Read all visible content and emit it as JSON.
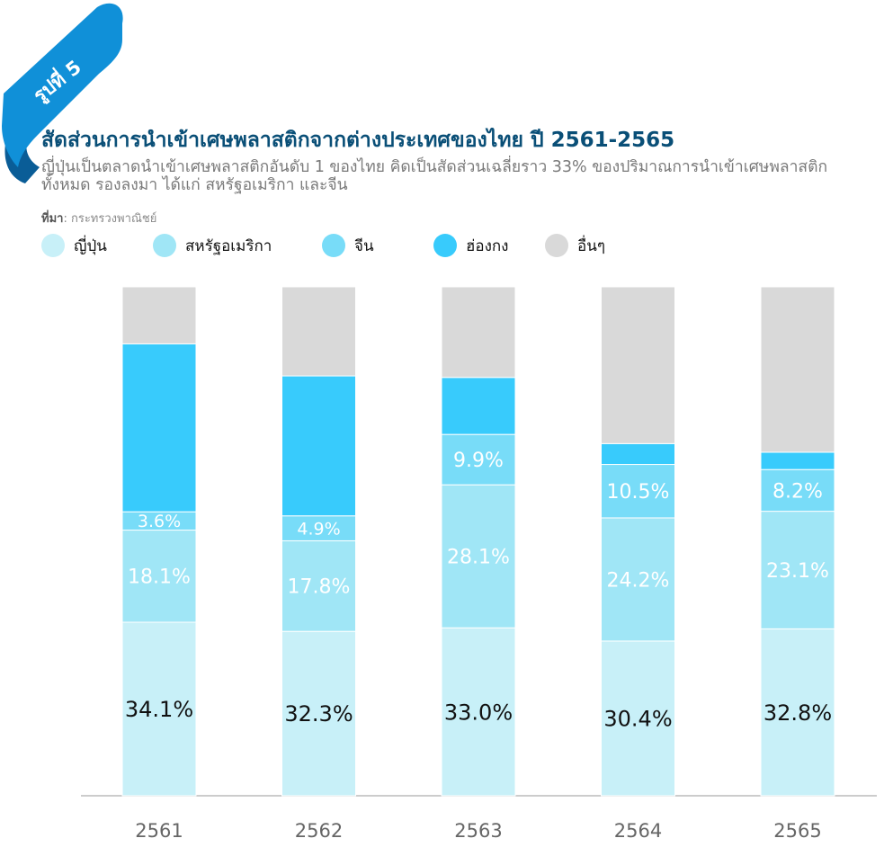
{
  "badge": {
    "text": "รูปที่ 5"
  },
  "header": {
    "title": "สัดส่วนการนำเข้าเศษพลาสติกจากต่างประเทศของไทย ปี 2561-2565",
    "subtitle": "ญี่ปุ่นเป็นตลาดนำเข้าเศษพลาสติกอันดับ 1 ของไทย คิดเป็นสัดส่วนเฉลี่ยราว 33% ของปริมาณการนำเข้าเศษพลาสติกทั้งหมด รองลงมา ได้แก่ สหรัฐอเมริกา และจีน",
    "source_label": "ที่มา",
    "source_text": ": กระทรวงพาณิชย์"
  },
  "colors": {
    "japan": "#c8f0f8",
    "usa": "#a0e6f6",
    "china": "#78dcf8",
    "hongkong": "#38cbfc",
    "others": "#d9d9d9",
    "ribbon": "#1090d8",
    "ribbon_dark": "#0a5d97",
    "title": "#0a4f77"
  },
  "legend": [
    {
      "label": "ญี่ปุ่น",
      "color": "#c8f0f8"
    },
    {
      "label": "สหรัฐอเมริกา",
      "color": "#a0e6f6"
    },
    {
      "label": "จีน",
      "color": "#78dcf8"
    },
    {
      "label": "ฮ่องกง",
      "color": "#38cbfc"
    },
    {
      "label": "อื่นๆ",
      "color": "#d9d9d9"
    }
  ],
  "chart_data": {
    "type": "bar",
    "stacked": true,
    "categories": [
      "2561",
      "2562",
      "2563",
      "2564",
      "2565"
    ],
    "series": [
      {
        "name": "ญี่ปุ่น",
        "values": [
          34.1,
          32.3,
          33.0,
          30.4,
          32.8
        ],
        "labels": [
          "34.1%",
          "32.3%",
          "33.0%",
          "30.4%",
          "32.8%"
        ]
      },
      {
        "name": "สหรัฐอเมริกา",
        "values": [
          18.1,
          17.8,
          28.1,
          24.2,
          23.1
        ],
        "labels": [
          "18.1%",
          "17.8%",
          "28.1%",
          "24.2%",
          "23.1%"
        ]
      },
      {
        "name": "จีน",
        "values": [
          3.6,
          4.9,
          9.9,
          10.5,
          8.2
        ],
        "labels": [
          "3.6%",
          "4.9%",
          "9.9%",
          "10.5%",
          "8.2%"
        ]
      },
      {
        "name": "ฮ่องกง",
        "values": [
          33.0,
          27.5,
          11.2,
          4.1,
          3.4
        ],
        "labels": [
          "",
          "",
          "",
          "",
          ""
        ]
      },
      {
        "name": "อื่นๆ",
        "values": [
          11.2,
          17.5,
          17.8,
          30.8,
          32.5
        ],
        "labels": [
          "",
          "",
          "",
          "",
          ""
        ]
      }
    ],
    "ylim": [
      0,
      100
    ],
    "grid": false,
    "legend_position": "top-left"
  }
}
